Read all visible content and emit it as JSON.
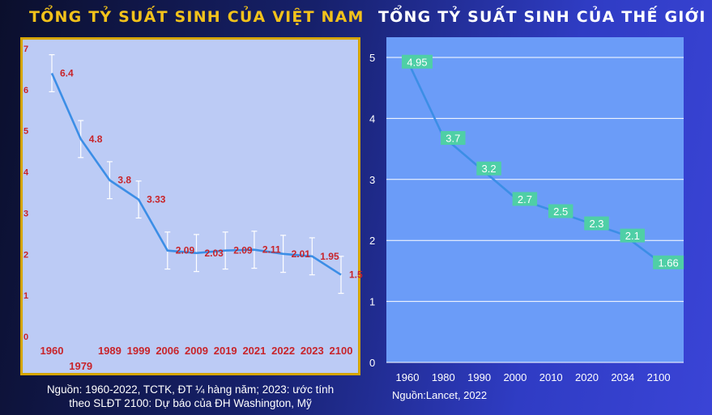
{
  "left": {
    "title": "TỔNG TỶ SUẤT SINH CỦA VIỆT NAM",
    "source_line1": "Nguồn: 1960-2022, TCTK, ĐT ¼ hàng năm; 2023: ước tính",
    "source_line2": "theo SLĐT 2100:  Dự báo của ĐH Washington, Mỹ"
  },
  "right": {
    "title": "TỔNG TỶ SUẤT SINH CỦA THẾ GIỚI",
    "source": "Nguồn:Lancet, 2022"
  },
  "colors": {
    "left_plot_bg": "#bccbf5",
    "left_border": "#d5a500",
    "right_plot_bg": "#6b9cf8",
    "line": "#3c8ee6",
    "label_red": "#c8242a",
    "label_box": "#4fcfa6"
  },
  "chart_data": [
    {
      "type": "line",
      "title": "TỔNG TỶ SUẤT SINH CỦA VIỆT NAM",
      "categories": [
        "1960",
        "1979",
        "1989",
        "1999",
        "2006",
        "2009",
        "2019",
        "2021",
        "2022",
        "2023",
        "2100"
      ],
      "values": [
        6.4,
        4.8,
        3.8,
        3.33,
        2.09,
        2.03,
        2.09,
        2.11,
        2.01,
        1.95,
        1.5
      ],
      "value_labels": [
        "6.4",
        "4.8",
        "3.8",
        "3.33",
        "2.09",
        "2.03",
        "2.09",
        "2.11",
        "2.01",
        "1.95",
        "1.5"
      ],
      "error_bar_halfwidth": 0.45,
      "yticks": [
        "0",
        "1",
        "2",
        "3",
        "4",
        "5",
        "6",
        "7"
      ],
      "ylim": [
        0,
        7
      ],
      "grid": false,
      "error_bars": true
    },
    {
      "type": "line",
      "title": "TỔNG TỶ SUẤT SINH CỦA THẾ GIỚI",
      "categories": [
        "1960",
        "1980",
        "1990",
        "2000",
        "2010",
        "2020",
        "2034",
        "2100"
      ],
      "values": [
        4.95,
        3.7,
        3.2,
        2.7,
        2.5,
        2.3,
        2.1,
        1.66
      ],
      "value_labels": [
        "4.95",
        "3.7",
        "3.2",
        "2.7",
        "2.5",
        "2.3",
        "2.1",
        "1.66"
      ],
      "yticks": [
        "0",
        "1",
        "2",
        "3",
        "4",
        "5"
      ],
      "ylim": [
        0,
        5
      ],
      "grid": true
    }
  ]
}
